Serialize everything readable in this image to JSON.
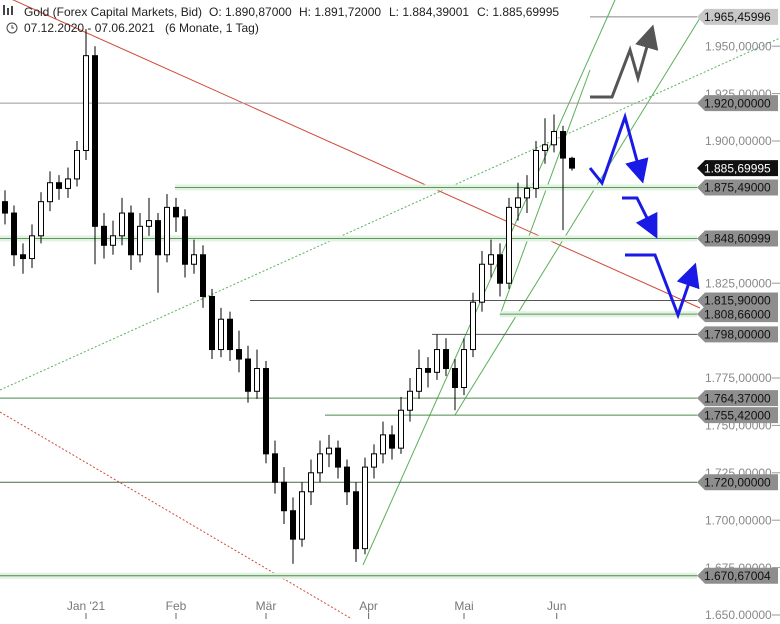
{
  "chart_data": {
    "type": "candlestick",
    "title": "Gold (Forex Capital Markets, Bid)",
    "ohlc_info": [
      "O: 1.890,87000",
      "H: 1.891,72000",
      "L: 1.884,39001",
      "C: 1.885,69995"
    ],
    "subtitle": "07.12.2020 - 07.06.2021",
    "period": "(6 Monate, 1 Tag)",
    "ylim": [
      1.64789,
      1.97437
    ],
    "xlim": [
      -0.556,
      86.11
    ],
    "yticks": [
      {
        "value": 1.65,
        "label": "1.650,00000"
      },
      {
        "value": 1.675,
        "label": "1.675,00000"
      },
      {
        "value": 1.7,
        "label": "1.700,00000"
      },
      {
        "value": 1.725,
        "label": "1.725,00000"
      },
      {
        "value": 1.75,
        "label": "1.750,00000"
      },
      {
        "value": 1.775,
        "label": "1.775,00000"
      },
      {
        "value": 1.825,
        "label": "1.825,00000"
      },
      {
        "value": 1.9,
        "label": "1.900,00000"
      },
      {
        "value": 1.925,
        "label": "1.925,00000"
      },
      {
        "value": 1.95,
        "label": "1.950,00000"
      }
    ],
    "xticks": [
      {
        "value": 9,
        "label": "Jan '21"
      },
      {
        "value": 19,
        "label": "Feb"
      },
      {
        "value": 29,
        "label": "Mär"
      },
      {
        "value": 40.4,
        "label": "Apr"
      },
      {
        "value": 51,
        "label": "Mai"
      },
      {
        "value": 61.3,
        "label": "Jun"
      }
    ],
    "up_color": "#ffffff",
    "down_color": "#000000",
    "candles": [
      [
        1.868,
        1.874,
        1.856,
        1.862
      ],
      [
        1.862,
        1.866,
        1.834,
        1.84
      ],
      [
        1.84,
        1.846,
        1.83,
        1.838
      ],
      [
        1.838,
        1.856,
        1.833,
        1.85
      ],
      [
        1.85,
        1.873,
        1.846,
        1.868
      ],
      [
        1.868,
        1.884,
        1.863,
        1.878
      ],
      [
        1.878,
        1.882,
        1.869,
        1.875
      ],
      [
        1.875,
        1.886,
        1.87,
        1.88
      ],
      [
        1.88,
        1.9,
        1.876,
        1.895
      ],
      [
        1.895,
        1.959,
        1.89,
        1.945
      ],
      [
        1.945,
        1.95,
        1.835,
        1.855
      ],
      [
        1.855,
        1.862,
        1.838,
        1.845
      ],
      [
        1.845,
        1.858,
        1.84,
        1.85
      ],
      [
        1.85,
        1.87,
        1.845,
        1.862
      ],
      [
        1.862,
        1.866,
        1.832,
        1.84
      ],
      [
        1.84,
        1.862,
        1.836,
        1.855
      ],
      [
        1.855,
        1.87,
        1.85,
        1.858
      ],
      [
        1.858,
        1.862,
        1.82,
        1.84
      ],
      [
        1.84,
        1.872,
        1.836,
        1.865
      ],
      [
        1.865,
        1.87,
        1.852,
        1.86
      ],
      [
        1.86,
        1.864,
        1.828,
        1.835
      ],
      [
        1.835,
        1.848,
        1.83,
        1.84
      ],
      [
        1.84,
        1.845,
        1.812,
        1.818
      ],
      [
        1.818,
        1.822,
        1.785,
        1.79
      ],
      [
        1.79,
        1.812,
        1.786,
        1.806
      ],
      [
        1.806,
        1.81,
        1.784,
        1.79
      ],
      [
        1.79,
        1.8,
        1.778,
        1.785
      ],
      [
        1.785,
        1.792,
        1.762,
        1.768
      ],
      [
        1.768,
        1.79,
        1.764,
        1.78
      ],
      [
        1.78,
        1.784,
        1.73,
        1.735
      ],
      [
        1.735,
        1.742,
        1.714,
        1.72
      ],
      [
        1.72,
        1.728,
        1.698,
        1.705
      ],
      [
        1.705,
        1.712,
        1.677,
        1.69
      ],
      [
        1.69,
        1.72,
        1.686,
        1.715
      ],
      [
        1.715,
        1.732,
        1.708,
        1.725
      ],
      [
        1.725,
        1.742,
        1.72,
        1.735
      ],
      [
        1.735,
        1.745,
        1.728,
        1.738
      ],
      [
        1.738,
        1.742,
        1.722,
        1.728
      ],
      [
        1.728,
        1.732,
        1.708,
        1.715
      ],
      [
        1.715,
        1.72,
        1.678,
        1.685
      ],
      [
        1.685,
        1.733,
        1.682,
        1.728
      ],
      [
        1.728,
        1.74,
        1.722,
        1.735
      ],
      [
        1.735,
        1.752,
        1.73,
        1.745
      ],
      [
        1.745,
        1.75,
        1.732,
        1.738
      ],
      [
        1.738,
        1.765,
        1.735,
        1.758
      ],
      [
        1.758,
        1.775,
        1.752,
        1.768
      ],
      [
        1.768,
        1.79,
        1.764,
        1.78
      ],
      [
        1.78,
        1.786,
        1.77,
        1.778
      ],
      [
        1.778,
        1.798,
        1.774,
        1.79
      ],
      [
        1.79,
        1.796,
        1.776,
        1.78
      ],
      [
        1.78,
        1.785,
        1.758,
        1.77
      ],
      [
        1.77,
        1.796,
        1.766,
        1.79
      ],
      [
        1.79,
        1.82,
        1.786,
        1.815
      ],
      [
        1.815,
        1.842,
        1.81,
        1.835
      ],
      [
        1.835,
        1.848,
        1.828,
        1.84
      ],
      [
        1.84,
        1.846,
        1.818,
        1.825
      ],
      [
        1.825,
        1.87,
        1.822,
        1.865
      ],
      [
        1.865,
        1.878,
        1.858,
        1.87
      ],
      [
        1.87,
        1.882,
        1.862,
        1.875
      ],
      [
        1.875,
        1.9,
        1.87,
        1.895
      ],
      [
        1.895,
        1.912,
        1.888,
        1.898
      ],
      [
        1.898,
        1.914,
        1.894,
        1.905
      ],
      [
        1.905,
        1.908,
        1.853,
        1.891
      ],
      [
        1.89087,
        1.89172,
        1.88439,
        1.8857
      ]
    ],
    "levels": [
      {
        "value": 1.96545996,
        "label": "1.965,45996",
        "color": "#888888"
      },
      {
        "value": 1.92,
        "label": "1.920,00000",
        "color": "#999999"
      },
      {
        "value": 1.87549,
        "label": "1.875,49000",
        "color": "#5a9a5a"
      },
      {
        "value": 1.84860999,
        "label": "1.848,60999",
        "color": "#5a9a5a"
      },
      {
        "value": 1.8159,
        "label": "1.815,90000",
        "color": "#555555"
      },
      {
        "value": 1.80866,
        "label": "1.808,66000",
        "color": "#5a9a5a"
      },
      {
        "value": 1.798,
        "label": "1.798,00000",
        "color": "#555555"
      },
      {
        "value": 1.76437,
        "label": "1.764,37000",
        "color": "#4a8a4a"
      },
      {
        "value": 1.75542,
        "label": "1.755,42000",
        "color": "#4a8a4a"
      },
      {
        "value": 1.72,
        "label": "1.720,00000",
        "color": "#4a6a4a"
      },
      {
        "value": 1.67067004,
        "label": "1.670,67004",
        "color": "#4a8a4a"
      }
    ],
    "last_price": {
      "value": 1.88569995,
      "label": "1.885,69995"
    }
  }
}
